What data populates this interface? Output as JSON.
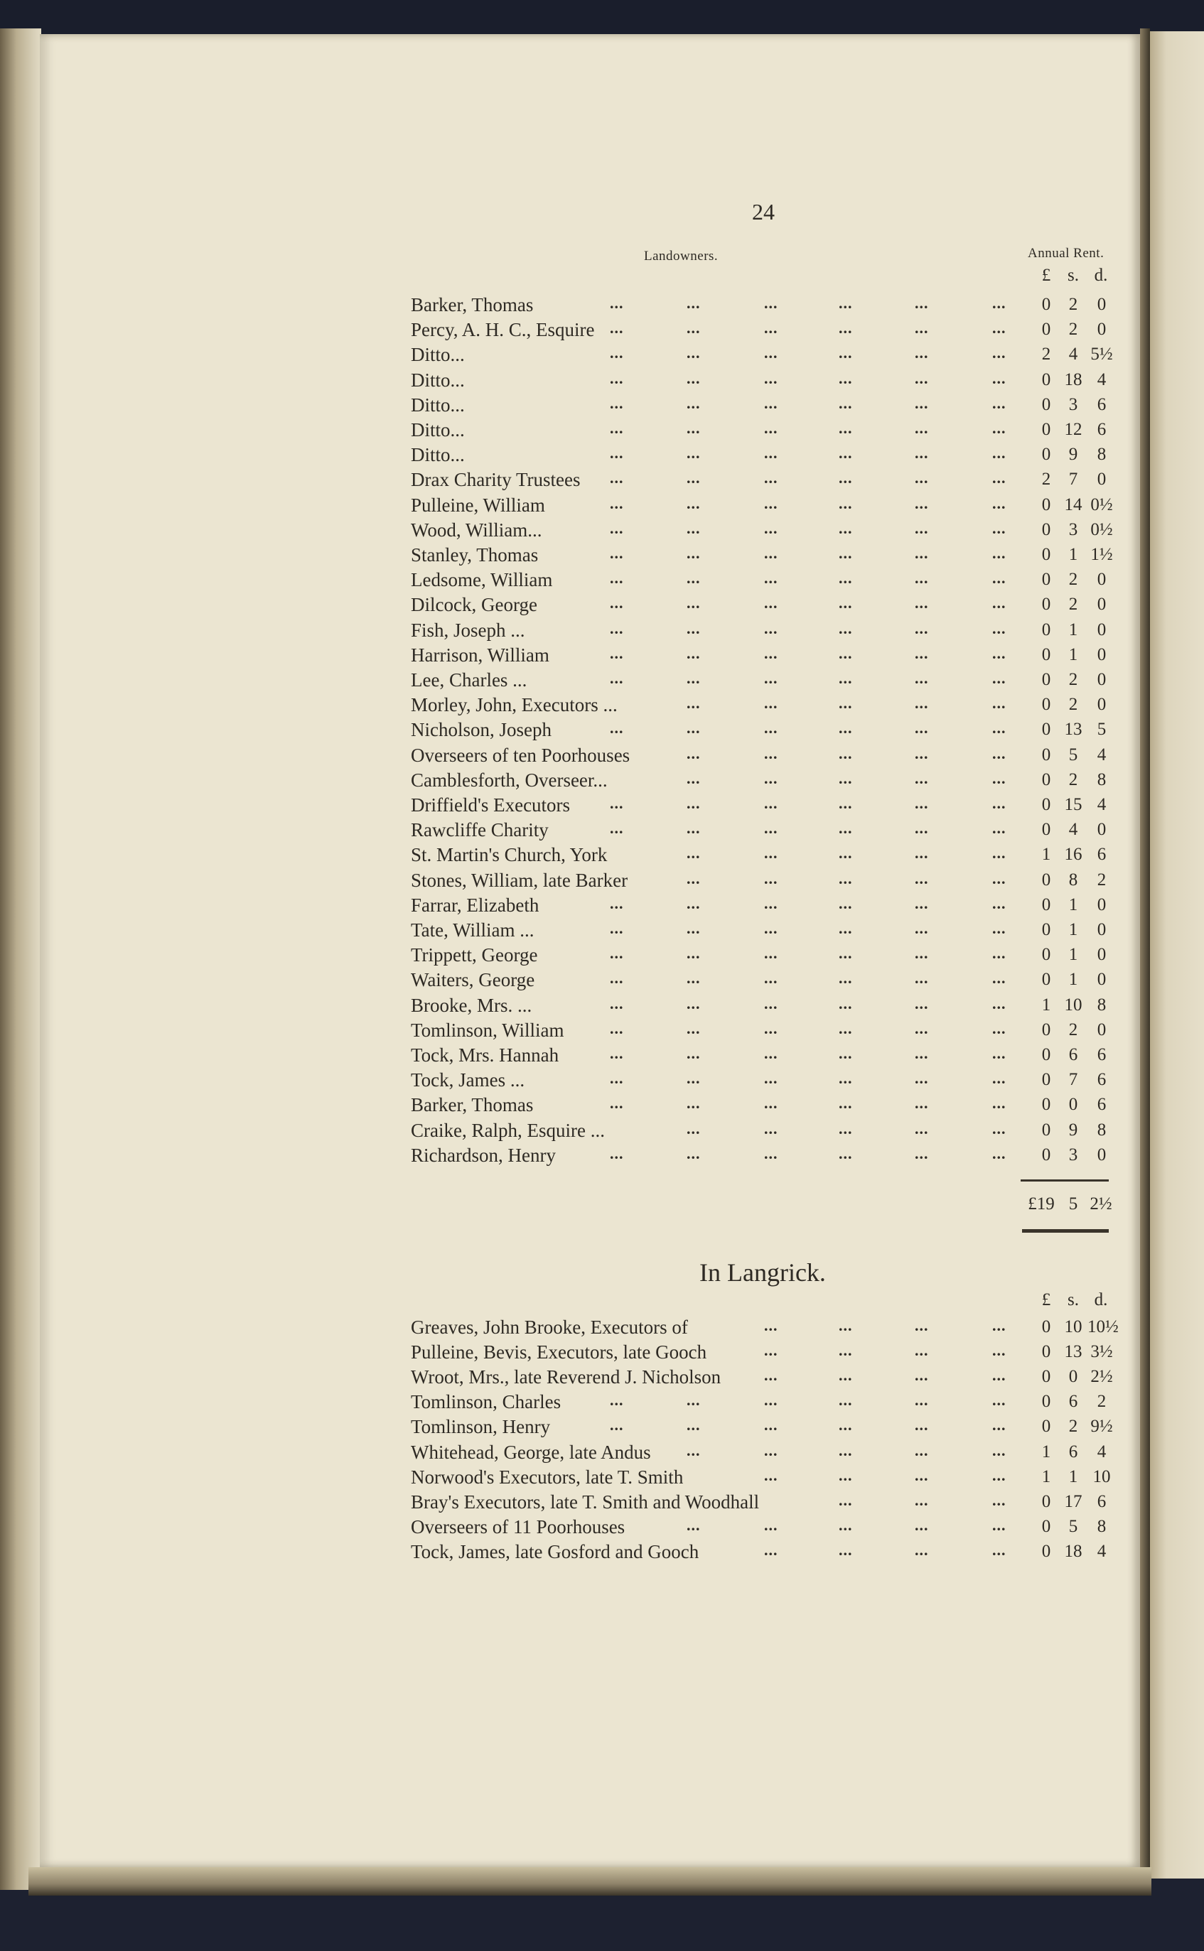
{
  "page_number": "24",
  "leader": "...",
  "header": {
    "landowners": "Landowners.",
    "annual_rent": "Annual Rent.",
    "pounds": "£",
    "shillings": "s.",
    "pence": "d."
  },
  "rows": [
    {
      "name": "Barker, Thomas",
      "l": "0",
      "s": "2",
      "d": "0"
    },
    {
      "name": "Percy, A. H. C., Esquire",
      "l": "0",
      "s": "2",
      "d": "0"
    },
    {
      "name": "Ditto...",
      "l": "2",
      "s": "4",
      "d": "5½"
    },
    {
      "name": "Ditto...",
      "l": "0",
      "s": "18",
      "d": "4"
    },
    {
      "name": "Ditto...",
      "l": "0",
      "s": "3",
      "d": "6"
    },
    {
      "name": "Ditto...",
      "l": "0",
      "s": "12",
      "d": "6"
    },
    {
      "name": "Ditto...",
      "l": "0",
      "s": "9",
      "d": "8"
    },
    {
      "name": "Drax Charity Trustees",
      "l": "2",
      "s": "7",
      "d": "0"
    },
    {
      "name": "Pulleine, William",
      "l": "0",
      "s": "14",
      "d": "0½"
    },
    {
      "name": "Wood, William...",
      "l": "0",
      "s": "3",
      "d": "0½"
    },
    {
      "name": "Stanley, Thomas",
      "l": "0",
      "s": "1",
      "d": "1½"
    },
    {
      "name": "Ledsome, William",
      "l": "0",
      "s": "2",
      "d": "0"
    },
    {
      "name": "Dilcock, George",
      "l": "0",
      "s": "2",
      "d": "0"
    },
    {
      "name": "Fish, Joseph ...",
      "l": "0",
      "s": "1",
      "d": "0"
    },
    {
      "name": "Harrison, William",
      "l": "0",
      "s": "1",
      "d": "0"
    },
    {
      "name": "Lee, Charles ...",
      "l": "0",
      "s": "2",
      "d": "0"
    },
    {
      "name": "Morley, John, Executors ...",
      "l": "0",
      "s": "2",
      "d": "0"
    },
    {
      "name": "Nicholson, Joseph",
      "l": "0",
      "s": "13",
      "d": "5"
    },
    {
      "name": "Overseers of ten Poorhouses",
      "l": "0",
      "s": "5",
      "d": "4"
    },
    {
      "name": "Camblesforth, Overseer...",
      "l": "0",
      "s": "2",
      "d": "8"
    },
    {
      "name": "Driffield's Executors",
      "l": "0",
      "s": "15",
      "d": "4"
    },
    {
      "name": "Rawcliffe Charity",
      "l": "0",
      "s": "4",
      "d": "0"
    },
    {
      "name": "St. Martin's Church, York",
      "l": "1",
      "s": "16",
      "d": "6"
    },
    {
      "name": "Stones, William, late Barker",
      "l": "0",
      "s": "8",
      "d": "2"
    },
    {
      "name": "Farrar, Elizabeth",
      "l": "0",
      "s": "1",
      "d": "0"
    },
    {
      "name": "Tate, William ...",
      "l": "0",
      "s": "1",
      "d": "0"
    },
    {
      "name": "Trippett, George",
      "l": "0",
      "s": "1",
      "d": "0"
    },
    {
      "name": "Waiters, George",
      "l": "0",
      "s": "1",
      "d": "0"
    },
    {
      "name": "Brooke, Mrs. ...",
      "l": "1",
      "s": "10",
      "d": "8"
    },
    {
      "name": "Tomlinson, William",
      "l": "0",
      "s": "2",
      "d": "0"
    },
    {
      "name": "Tock, Mrs. Hannah",
      "l": "0",
      "s": "6",
      "d": "6"
    },
    {
      "name": "Tock, James ...",
      "l": "0",
      "s": "7",
      "d": "6"
    },
    {
      "name": "Barker, Thomas",
      "l": "0",
      "s": "0",
      "d": "6"
    },
    {
      "name": "Craike, Ralph, Esquire ...",
      "l": "0",
      "s": "9",
      "d": "8"
    },
    {
      "name": "Richardson, Henry",
      "l": "0",
      "s": "3",
      "d": "0"
    }
  ],
  "total": {
    "l": "£19",
    "s": "5",
    "d": "2½"
  },
  "langrick": {
    "title": "In Langrick.",
    "pounds": "£",
    "shillings": "s.",
    "pence": "d.",
    "rows": [
      {
        "name": "Greaves, John Brooke, Executors of",
        "l": "0",
        "s": "10",
        "d": "10½"
      },
      {
        "name": "Pulleine, Bevis, Executors, late Gooch",
        "l": "0",
        "s": "13",
        "d": "3½"
      },
      {
        "name": "Wroot, Mrs., late Reverend J. Nicholson",
        "l": "0",
        "s": "0",
        "d": "2½"
      },
      {
        "name": "Tomlinson, Charles",
        "l": "0",
        "s": "6",
        "d": "2"
      },
      {
        "name": "Tomlinson, Henry",
        "l": "0",
        "s": "2",
        "d": "9½"
      },
      {
        "name": "Whitehead, George, late Andus",
        "l": "1",
        "s": "6",
        "d": "4"
      },
      {
        "name": "Norwood's Executors, late T. Smith",
        "l": "1",
        "s": "1",
        "d": "10"
      },
      {
        "name": "Bray's Executors, late T. Smith and Woodhall",
        "l": "0",
        "s": "17",
        "d": "6"
      },
      {
        "name": "Overseers of 11 Poorhouses",
        "l": "0",
        "s": "5",
        "d": "8"
      },
      {
        "name": "Tock, James, late Gosford and Gooch",
        "l": "0",
        "s": "18",
        "d": "4"
      }
    ]
  }
}
